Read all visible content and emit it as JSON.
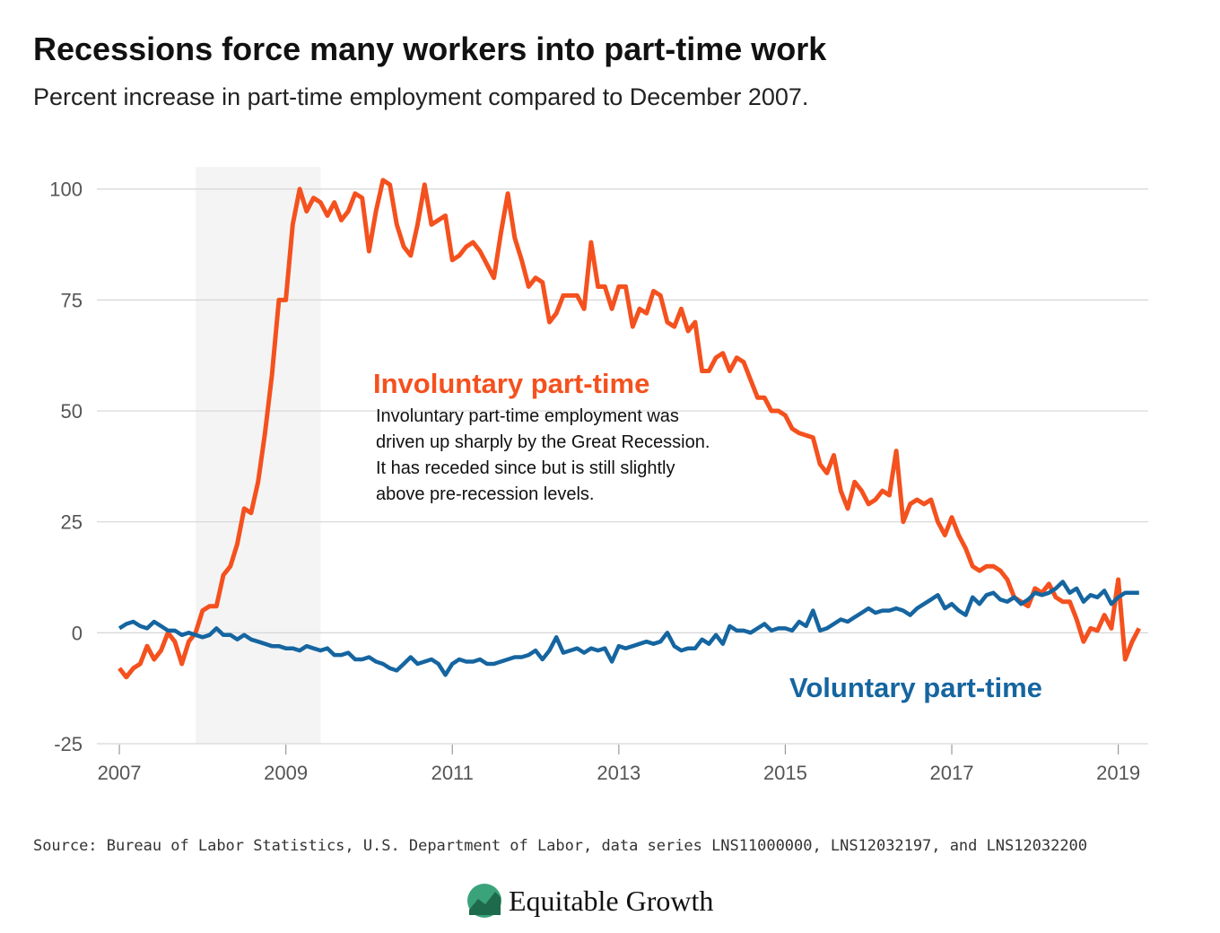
{
  "chart_data": {
    "type": "line",
    "title": "Recessions force many workers into part-time work",
    "subtitle": "Percent increase in part-time employment compared to December 2007.",
    "source": "Source: Bureau of Labor Statistics, U.S. Department of Labor, data series LNS11000000, LNS12032197, and LNS12032200",
    "brand": "Equitable Growth",
    "note": [
      "Involuntary part-time employment was",
      "driven up sharply by the Great Recession.",
      "It has receded since but is still slightly",
      "above pre-recession levels."
    ],
    "recession": [
      2007.917,
      2009.417
    ],
    "xlim": [
      2006.73,
      2019.36
    ],
    "ylim": [
      -25,
      105
    ],
    "xticks": [
      2007,
      2009,
      2011,
      2013,
      2015,
      2017,
      2019
    ],
    "yticks": [
      -25,
      0,
      25,
      50,
      75,
      100
    ],
    "grid": true,
    "x": [
      2007,
      2007.083,
      2007.167,
      2007.25,
      2007.333,
      2007.417,
      2007.5,
      2007.583,
      2007.667,
      2007.75,
      2007.833,
      2007.917,
      2008,
      2008.083,
      2008.167,
      2008.25,
      2008.333,
      2008.417,
      2008.5,
      2008.583,
      2008.667,
      2008.75,
      2008.833,
      2008.917,
      2009,
      2009.083,
      2009.167,
      2009.25,
      2009.333,
      2009.417,
      2009.5,
      2009.583,
      2009.667,
      2009.75,
      2009.833,
      2009.917,
      2010,
      2010.083,
      2010.167,
      2010.25,
      2010.333,
      2010.417,
      2010.5,
      2010.583,
      2010.667,
      2010.75,
      2010.833,
      2010.917,
      2011,
      2011.083,
      2011.167,
      2011.25,
      2011.333,
      2011.417,
      2011.5,
      2011.583,
      2011.667,
      2011.75,
      2011.833,
      2011.917,
      2012,
      2012.083,
      2012.167,
      2012.25,
      2012.333,
      2012.417,
      2012.5,
      2012.583,
      2012.667,
      2012.75,
      2012.833,
      2012.917,
      2013,
      2013.083,
      2013.167,
      2013.25,
      2013.333,
      2013.417,
      2013.5,
      2013.583,
      2013.667,
      2013.75,
      2013.833,
      2013.917,
      2014,
      2014.083,
      2014.167,
      2014.25,
      2014.333,
      2014.417,
      2014.5,
      2014.583,
      2014.667,
      2014.75,
      2014.833,
      2014.917,
      2015,
      2015.083,
      2015.167,
      2015.25,
      2015.333,
      2015.417,
      2015.5,
      2015.583,
      2015.667,
      2015.75,
      2015.833,
      2015.917,
      2016,
      2016.083,
      2016.167,
      2016.25,
      2016.333,
      2016.417,
      2016.5,
      2016.583,
      2016.667,
      2016.75,
      2016.833,
      2016.917,
      2017,
      2017.083,
      2017.167,
      2017.25,
      2017.333,
      2017.417,
      2017.5,
      2017.583,
      2017.667,
      2017.75,
      2017.833,
      2017.917,
      2018,
      2018.083,
      2018.167,
      2018.25,
      2018.333,
      2018.417,
      2018.5,
      2018.583,
      2018.667,
      2018.75,
      2018.833,
      2018.917,
      2019,
      2019.083,
      2019.167,
      2019.25
    ],
    "series": [
      {
        "name": "Involuntary part-time",
        "color": "#f4511e",
        "values": [
          -8,
          -10,
          -8,
          -7,
          -3,
          -6,
          -4,
          0,
          -2,
          -7,
          -2,
          0,
          5,
          6,
          6,
          13,
          15,
          20,
          28,
          27,
          34,
          45,
          58,
          75,
          75,
          92,
          100,
          95,
          98,
          97,
          94,
          97,
          93,
          95,
          99,
          98,
          86,
          95,
          102,
          101,
          92,
          87,
          85,
          92,
          101,
          92,
          93,
          94,
          84,
          85,
          87,
          88,
          86,
          83,
          80,
          90,
          99,
          89,
          84,
          78,
          80,
          79,
          70,
          72,
          76,
          76,
          76,
          73,
          88,
          78,
          78,
          73,
          78,
          78,
          69,
          73,
          72,
          77,
          76,
          70,
          69,
          73,
          68,
          70,
          59,
          59,
          62,
          63,
          59,
          62,
          61,
          57,
          53,
          53,
          50,
          50,
          49,
          46,
          45,
          44.5,
          44,
          38,
          36,
          40,
          32,
          28,
          34,
          32,
          29,
          30,
          32,
          31,
          41,
          25,
          29,
          30,
          29,
          30,
          25,
          22,
          26,
          22,
          19,
          15,
          14,
          15,
          15,
          14,
          12,
          8,
          7,
          6,
          10,
          9,
          11,
          8,
          7,
          7,
          3,
          -2,
          1,
          0.5,
          4,
          1,
          12,
          -6,
          -2,
          1
        ]
      },
      {
        "name": "Voluntary part-time",
        "color": "#1565a0",
        "values": [
          1,
          2,
          2.5,
          1.5,
          1,
          2.5,
          1.5,
          0.5,
          0.5,
          -0.5,
          0,
          -0.5,
          -1,
          -0.5,
          1,
          -0.5,
          -0.5,
          -1.5,
          -0.5,
          -1.5,
          -2,
          -2.5,
          -3,
          -3,
          -3.5,
          -3.5,
          -4,
          -3,
          -3.5,
          -4,
          -3.5,
          -5,
          -5,
          -4.5,
          -6,
          -6,
          -5.5,
          -6.5,
          -7,
          -8,
          -8.5,
          -7,
          -5.5,
          -7,
          -6.5,
          -6,
          -7,
          -9.5,
          -7,
          -6,
          -6.5,
          -6.5,
          -6,
          -7,
          -7,
          -6.5,
          -6,
          -5.5,
          -5.5,
          -5,
          -4,
          -6,
          -4,
          -1,
          -4.5,
          -4,
          -3.5,
          -4.5,
          -3.5,
          -4,
          -3.5,
          -6.5,
          -3,
          -3.5,
          -3,
          -2.5,
          -2,
          -2.5,
          -2,
          0,
          -3,
          -4,
          -3.5,
          -3.5,
          -1.5,
          -2.5,
          -0.5,
          -2.5,
          1.5,
          0.5,
          0.5,
          0,
          1,
          2,
          0.5,
          1,
          1,
          0.5,
          2.5,
          1.5,
          5,
          0.5,
          1,
          2,
          3,
          2.5,
          3.5,
          4.5,
          5.5,
          4.5,
          5,
          5,
          5.5,
          5,
          4,
          5.5,
          6.5,
          7.5,
          8.5,
          5.5,
          6.5,
          5,
          4,
          8,
          6.5,
          8.5,
          9,
          7.5,
          7,
          8,
          6.5,
          7.5,
          9,
          8.5,
          9,
          10,
          11.5,
          9,
          10,
          7,
          8.5,
          8,
          9.5,
          6.5,
          8,
          9,
          9,
          9
        ]
      }
    ]
  }
}
